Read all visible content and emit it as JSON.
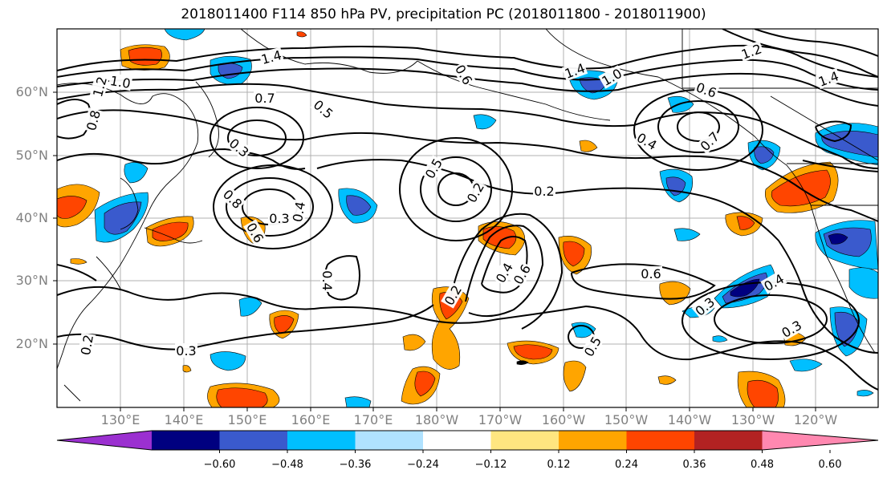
{
  "title": "2018011400 F114 850 hPa PV, precipitation PC (2018011800 - 2018011900)",
  "map": {
    "lat_labels": [
      "60°N",
      "50°N",
      "40°N",
      "30°N",
      "20°N"
    ],
    "lon_labels": [
      "130°E",
      "140°E",
      "150°E",
      "160°E",
      "170°E",
      "180°W",
      "170°W",
      "160°W",
      "150°W",
      "140°W",
      "130°W",
      "120°W"
    ],
    "contour_labels": [
      "1.4",
      "1.0",
      "0.7",
      "0.8",
      "1.2",
      "0.3",
      "0.5",
      "0.6",
      "0.8",
      "0.6",
      "0.4",
      "0.5",
      "0.2",
      "0.2",
      "0.4",
      "0.2",
      "0.4",
      "0.6",
      "0.6",
      "0.3",
      "0.4",
      "0.3",
      "0.5",
      "0.3",
      "1.4",
      "1.0",
      "0.6",
      "0.7",
      "1.2",
      "1.4",
      "0.4",
      "0.2",
      "0.3"
    ]
  },
  "colorbar": {
    "colors": [
      "#9b30d0",
      "#000080",
      "#3a5acd",
      "#00bfff",
      "#b0e2ff",
      "#ffffff",
      "#ffe680",
      "#ffa500",
      "#ff4500",
      "#b22222",
      "#ff88b0"
    ],
    "tick_labels": [
      "−0.60",
      "−0.48",
      "−0.36",
      "−0.24",
      "−0.12",
      "0.12",
      "0.24",
      "0.36",
      "0.48",
      "0.60"
    ]
  }
}
